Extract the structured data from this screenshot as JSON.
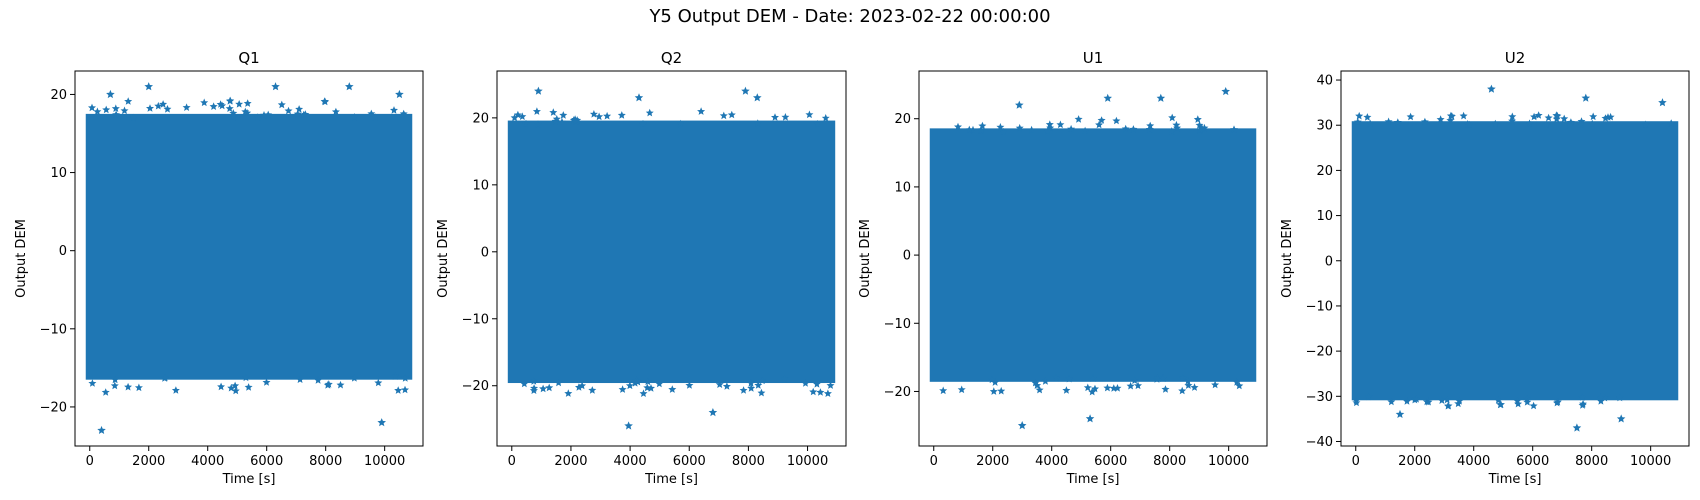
{
  "figure": {
    "title": "Y5 Output DEM - Date: 2023-02-22 00:00:00"
  },
  "colors": {
    "series": "#1f77b4"
  },
  "chart_data": [
    {
      "type": "scatter",
      "title": "Q1",
      "xlabel": "Time [s]",
      "ylabel": "Output DEM",
      "marker": "star",
      "xlim": [
        -500,
        11300
      ],
      "ylim": [
        -25,
        23
      ],
      "xticks": [
        0,
        2000,
        4000,
        6000,
        8000,
        10000
      ],
      "yticks": [
        -20,
        -10,
        0,
        10,
        20
      ],
      "x_range": [
        0,
        10800
      ],
      "dense_band": [
        -16,
        17
      ],
      "extremes": [
        [
          400,
          -23
        ],
        [
          2000,
          21
        ],
        [
          6300,
          21
        ],
        [
          8800,
          21
        ],
        [
          9900,
          -22
        ],
        [
          700,
          20
        ],
        [
          10500,
          20
        ]
      ]
    },
    {
      "type": "scatter",
      "title": "Q2",
      "xlabel": "Time [s]",
      "ylabel": "Output DEM",
      "marker": "star",
      "xlim": [
        -500,
        11300
      ],
      "ylim": [
        -29,
        27
      ],
      "xticks": [
        0,
        2000,
        4000,
        6000,
        8000,
        10000
      ],
      "yticks": [
        -20,
        -10,
        0,
        10,
        20
      ],
      "x_range": [
        0,
        10800
      ],
      "dense_band": [
        -19,
        19
      ],
      "extremes": [
        [
          900,
          24
        ],
        [
          3950,
          -26
        ],
        [
          7900,
          24
        ],
        [
          6800,
          -24
        ],
        [
          4300,
          23
        ],
        [
          8300,
          23
        ]
      ]
    },
    {
      "type": "scatter",
      "title": "U1",
      "xlabel": "Time [s]",
      "ylabel": "Output DEM",
      "marker": "star",
      "xlim": [
        -500,
        11300
      ],
      "ylim": [
        -28,
        27
      ],
      "xticks": [
        0,
        2000,
        4000,
        6000,
        8000,
        10000
      ],
      "yticks": [
        -20,
        -10,
        0,
        10,
        20
      ],
      "x_range": [
        0,
        10800
      ],
      "dense_band": [
        -18,
        18
      ],
      "extremes": [
        [
          3000,
          -25
        ],
        [
          5300,
          -24
        ],
        [
          9900,
          24
        ],
        [
          2900,
          22
        ],
        [
          5900,
          23
        ],
        [
          7700,
          23
        ]
      ]
    },
    {
      "type": "scatter",
      "title": "U2",
      "xlabel": "Time [s]",
      "ylabel": "Output DEM",
      "marker": "star",
      "xlim": [
        -500,
        11300
      ],
      "ylim": [
        -41,
        42
      ],
      "xticks": [
        0,
        2000,
        4000,
        6000,
        8000,
        10000
      ],
      "yticks": [
        -40,
        -30,
        -20,
        -10,
        0,
        10,
        20,
        30,
        40
      ],
      "x_range": [
        0,
        10800
      ],
      "dense_band": [
        -30,
        30
      ],
      "extremes": [
        [
          4600,
          38
        ],
        [
          7500,
          -37
        ],
        [
          7800,
          36
        ],
        [
          9000,
          -35
        ],
        [
          1500,
          -34
        ],
        [
          10400,
          35
        ]
      ]
    }
  ]
}
